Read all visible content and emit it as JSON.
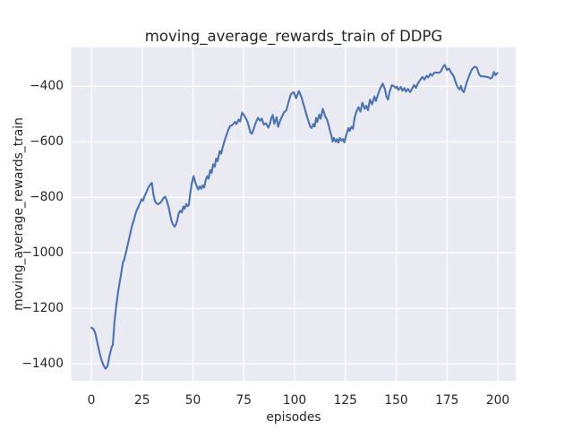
{
  "figure": {
    "title": "moving_average_rewards_train of DDPG",
    "xlabel": "episodes",
    "ylabel": "moving_average_rewards_train"
  },
  "chart_data": {
    "type": "line",
    "title": "moving_average_rewards_train of DDPG",
    "xlabel": "episodes",
    "ylabel": "moving_average_rewards_train",
    "grid": true,
    "legend": false,
    "xlim": [
      -9.9,
      208.8
    ],
    "ylim": [
      -1461,
      -259
    ],
    "xticks": [
      0,
      25,
      50,
      75,
      100,
      125,
      150,
      175,
      200
    ],
    "yticks": [
      -400,
      -600,
      -800,
      -1000,
      -1200,
      -1400
    ],
    "xtick_labels": [
      "0",
      "25",
      "50",
      "75",
      "100",
      "125",
      "150",
      "175",
      "200"
    ],
    "ytick_labels": [
      "−400",
      "−600",
      "−800",
      "−1000",
      "−1200",
      "−1400"
    ],
    "style": {
      "figure_bg": "#ffffff",
      "plot_bg": "#eaeaf2",
      "grid_color": "#ffffff",
      "line_color": "#4c72b0",
      "text_color": "#262626"
    },
    "series": [
      {
        "name": "moving_average_rewards_train",
        "color": "#4c72b0",
        "x": [
          0,
          1,
          2,
          3,
          4,
          5,
          6,
          7,
          8,
          9,
          10,
          10.6,
          11.4,
          12.2,
          13.2,
          14.4,
          15.6,
          16.1,
          16.6,
          17.3,
          18,
          18.8,
          19.5,
          20.2,
          21,
          21.7,
          22.4,
          23.2,
          24,
          24.7,
          25.4,
          26.2,
          27.2,
          28.2,
          29.2,
          29.8,
          30.6,
          31.3,
          32,
          32.8,
          33.5,
          34.2,
          35,
          35.7,
          36.4,
          37.2,
          38,
          38.7,
          39.4,
          40.1,
          41,
          41.7,
          42.3,
          43,
          43.8,
          44.5,
          45.3,
          46,
          46.7,
          47.4,
          48,
          48.6,
          49.4,
          50.3,
          51.1,
          51.9,
          52.6,
          53.4,
          54.1,
          54.8,
          55.5,
          56.2,
          57,
          57.7,
          58.5,
          59.2,
          59.9,
          60.7,
          61.4,
          62.1,
          63.2,
          63.9,
          65.1,
          66.1,
          67.3,
          68.3,
          69.5,
          70.7,
          71.4,
          72.5,
          73.2,
          74.2,
          75.4,
          76.9,
          78.3,
          79,
          79.8,
          80.5,
          81.3,
          82,
          83,
          83.9,
          84.9,
          85.9,
          87.1,
          88,
          88.7,
          89.3,
          90,
          91.2,
          91.9,
          92.9,
          94,
          94.7,
          96,
          97,
          98.2,
          99.6,
          100.8,
          102.1,
          103.3,
          104.8,
          106.3,
          107.7,
          108.4,
          109.2,
          109.9,
          110.6,
          111.2,
          112.1,
          112.8,
          113.9,
          115,
          116,
          116.8,
          117.5,
          118.2,
          118.7,
          119.4,
          120.2,
          120.9,
          121.6,
          122.3,
          123.1,
          123.8,
          124.5,
          125.6,
          126.5,
          127.1,
          128,
          128.7,
          129.7,
          130.5,
          131.5,
          132.4,
          133.4,
          134.5,
          135.3,
          136.1,
          137.1,
          138.1,
          139.3,
          140,
          141.2,
          142.3,
          143.4,
          144.5,
          145.2,
          146,
          146.7,
          147.9,
          148.9,
          149.7,
          150.4,
          151.1,
          152.3,
          153,
          154,
          154.8,
          155.8,
          156.9,
          158,
          158.8,
          159.7,
          160.7,
          161.7,
          162.9,
          163.9,
          165,
          165.8,
          166.8,
          167.7,
          168.7,
          169.7,
          171,
          171.8,
          172.6,
          173.3,
          173.9,
          175,
          176,
          177.1,
          178.2,
          179.4,
          180.4,
          181.2,
          181.9,
          182.6,
          183.3,
          184,
          184.8,
          185.9,
          187.1,
          188,
          188.8,
          189.7,
          190.8,
          191.6,
          192.6,
          193.6,
          194.6,
          195.6,
          196.4,
          197.2,
          198.1,
          198.9,
          199.8
        ],
        "y": [
          -1270,
          -1274,
          -1290,
          -1325,
          -1358,
          -1386,
          -1405,
          -1418,
          -1408,
          -1370,
          -1340,
          -1332,
          -1248,
          -1195,
          -1141,
          -1087,
          -1033,
          -1027,
          -1012,
          -990,
          -969,
          -942,
          -920,
          -899,
          -880,
          -861,
          -846,
          -834,
          -820,
          -807,
          -813,
          -796,
          -780,
          -763,
          -752,
          -748,
          -790,
          -813,
          -821,
          -825,
          -822,
          -818,
          -809,
          -801,
          -798,
          -813,
          -834,
          -858,
          -883,
          -897,
          -906,
          -897,
          -883,
          -858,
          -848,
          -855,
          -833,
          -841,
          -824,
          -832,
          -828,
          -790,
          -752,
          -724,
          -745,
          -760,
          -772,
          -760,
          -769,
          -757,
          -765,
          -740,
          -724,
          -733,
          -702,
          -712,
          -681,
          -690,
          -660,
          -670,
          -633,
          -643,
          -607,
          -585,
          -558,
          -543,
          -539,
          -528,
          -536,
          -520,
          -527,
          -495,
          -507,
          -529,
          -566,
          -571,
          -556,
          -540,
          -524,
          -513,
          -524,
          -516,
          -538,
          -533,
          -549,
          -531,
          -512,
          -503,
          -535,
          -511,
          -546,
          -524,
          -506,
          -495,
          -486,
          -458,
          -428,
          -421,
          -443,
          -417,
          -437,
          -475,
          -513,
          -545,
          -550,
          -536,
          -545,
          -514,
          -528,
          -502,
          -517,
          -481,
          -508,
          -520,
          -540,
          -562,
          -580,
          -599,
          -586,
          -600,
          -590,
          -603,
          -586,
          -596,
          -590,
          -602,
          -572,
          -550,
          -561,
          -546,
          -553,
          -508,
          -491,
          -475,
          -491,
          -459,
          -481,
          -470,
          -486,
          -448,
          -465,
          -437,
          -453,
          -427,
          -405,
          -390,
          -411,
          -437,
          -448,
          -421,
          -396,
          -399,
          -406,
          -401,
          -413,
          -402,
          -416,
          -406,
          -419,
          -409,
          -421,
          -406,
          -395,
          -406,
          -389,
          -378,
          -366,
          -376,
          -362,
          -368,
          -355,
          -362,
          -351,
          -350,
          -351,
          -348,
          -337,
          -327,
          -323,
          -341,
          -336,
          -351,
          -362,
          -388,
          -405,
          -411,
          -398,
          -416,
          -421,
          -404,
          -384,
          -362,
          -341,
          -333,
          -329,
          -333,
          -357,
          -364,
          -364,
          -365,
          -366,
          -368,
          -372,
          -368,
          -348,
          -360,
          -352
        ]
      }
    ]
  }
}
